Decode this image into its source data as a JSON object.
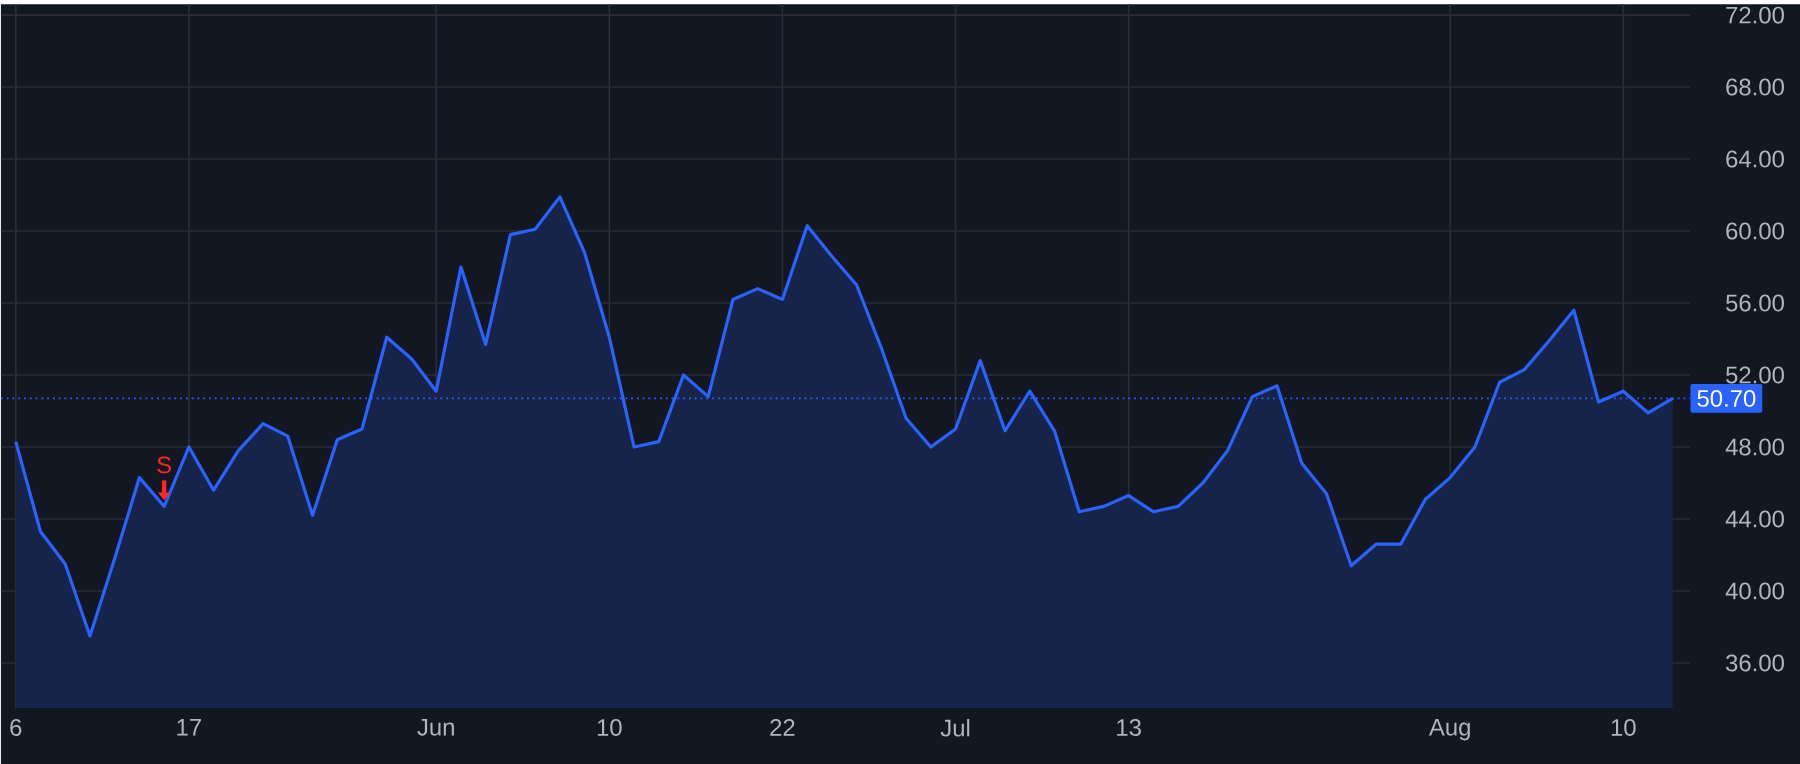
{
  "chart_data": {
    "type": "area",
    "categories": [
      "6",
      null,
      null,
      null,
      null,
      null,
      null,
      "17",
      null,
      null,
      null,
      null,
      null,
      null,
      null,
      null,
      null,
      "Jun",
      null,
      null,
      null,
      null,
      null,
      null,
      "10",
      null,
      null,
      null,
      null,
      null,
      null,
      "22",
      null,
      null,
      null,
      null,
      null,
      null,
      "Jul",
      null,
      null,
      null,
      null,
      null,
      null,
      "13",
      null,
      null,
      null,
      null,
      null,
      null,
      null,
      null,
      null,
      null,
      null,
      null,
      "Aug",
      null,
      null,
      null,
      null,
      null,
      null,
      "10",
      null,
      null
    ],
    "series": [
      {
        "color": "#2962ff",
        "values": [
          48.3,
          43.3,
          41.5,
          37.5,
          41.8,
          46.3,
          44.7,
          48.0,
          45.6,
          47.8,
          49.3,
          48.6,
          44.2,
          48.4,
          49.0,
          54.1,
          52.9,
          51.1,
          58.0,
          53.7,
          59.8,
          60.1,
          61.9,
          58.8,
          54.1,
          48.0,
          48.3,
          52.0,
          50.8,
          56.2,
          56.8,
          56.2,
          60.3,
          58.6,
          57.0,
          53.5,
          49.6,
          48.0,
          49.0,
          52.8,
          48.9,
          51.1,
          48.9,
          44.4,
          44.7,
          45.3,
          44.4,
          44.7,
          46.0,
          47.8,
          50.8,
          51.4,
          47.1,
          45.4,
          41.4,
          42.6,
          42.6,
          45.1,
          46.3,
          48.0,
          51.6,
          52.3,
          53.9,
          55.6,
          50.5,
          51.1,
          49.9,
          50.7
        ]
      }
    ],
    "ylim": [
      33.5,
      72.6
    ],
    "yticks": [
      {
        "value": 36,
        "label": "36.00"
      },
      {
        "value": 40,
        "label": "40.00"
      },
      {
        "value": 44,
        "label": "44.00"
      },
      {
        "value": 48,
        "label": "48.00"
      },
      {
        "value": 52,
        "label": "52.00"
      },
      {
        "value": 56,
        "label": "56.00"
      },
      {
        "value": 60,
        "label": "60.00"
      },
      {
        "value": 64,
        "label": "64.00"
      },
      {
        "value": 68,
        "label": "68.00"
      },
      {
        "value": 72,
        "label": "72.00"
      }
    ],
    "grid": true,
    "line_style": "solid",
    "ref_lines": [
      {
        "axis": "y",
        "value": 50.7,
        "label": "50.70",
        "color": "#2962ff",
        "line_style": "dotted"
      }
    ],
    "annotations": [
      {
        "text": "S",
        "y": 44.7
      }
    ]
  }
}
